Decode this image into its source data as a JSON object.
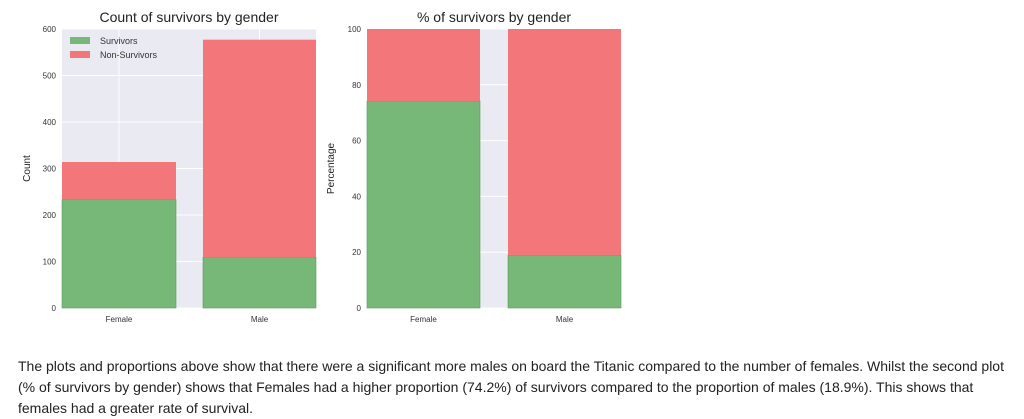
{
  "chart_data": [
    {
      "type": "bar",
      "stacked": true,
      "title": "Count of survivors by gender",
      "xlabel": "",
      "ylabel": "Count",
      "categories": [
        "Female",
        "Male"
      ],
      "series": [
        {
          "name": "Survivors",
          "values": [
            233,
            109
          ],
          "color": "#77b777"
        },
        {
          "name": "Non-Survivors",
          "values": [
            81,
            468
          ],
          "color": "#f3777a"
        }
      ],
      "ylim": [
        0,
        600
      ],
      "yticks": [
        "0",
        "100",
        "200",
        "300",
        "400",
        "500",
        "600"
      ],
      "grid": true,
      "legend": "top-left"
    },
    {
      "type": "bar",
      "stacked": true,
      "title": "% of survivors by gender",
      "xlabel": "",
      "ylabel": "Percentage",
      "categories": [
        "Female",
        "Male"
      ],
      "series": [
        {
          "name": "Survivors",
          "values": [
            74.2,
            18.9
          ],
          "color": "#77b777"
        },
        {
          "name": "Non-Survivors",
          "values": [
            25.8,
            81.1
          ],
          "color": "#f3777a"
        }
      ],
      "ylim": [
        0,
        100
      ],
      "yticks": [
        "0",
        "20",
        "40",
        "60",
        "80",
        "100"
      ],
      "grid": true,
      "legend": "none"
    }
  ],
  "caption": "The plots and proportions above show that there were a significant more males on board the Titanic compared to the number of females. Whilst the second plot (% of survivors by gender) shows that Females had a higher proportion (74.2%) of survivors compared to the proportion of males (18.9%). This shows that females had a greater rate of survival."
}
